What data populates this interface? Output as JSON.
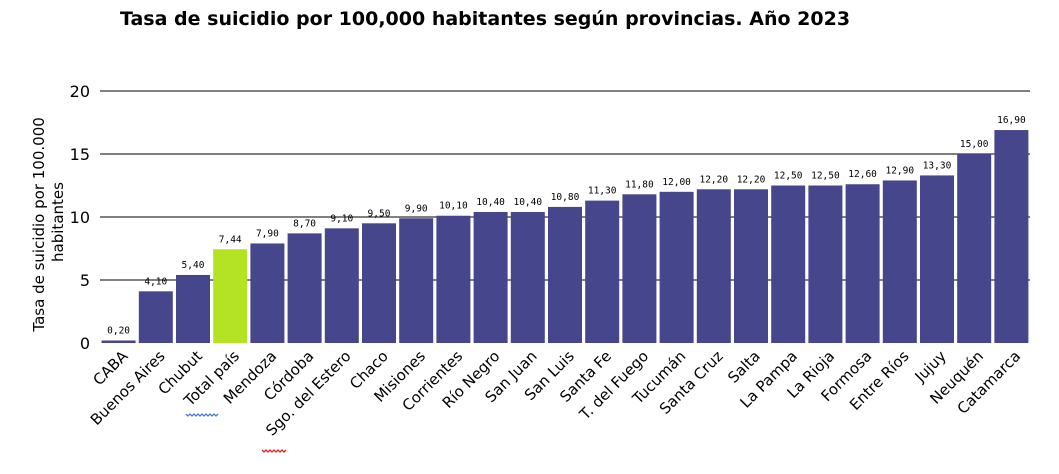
{
  "chart_data": {
    "type": "bar",
    "title": "Tasa de suicidio por 100,000 habitantes según provincias. Año 2023",
    "ylabel_lines": [
      "Tasa de suicidio por 100.000",
      "habitantes"
    ],
    "xlabel": "",
    "ylim": [
      0,
      20
    ],
    "yticks": [
      0,
      5,
      10,
      15,
      20
    ],
    "grid": true,
    "categories": [
      "CABA",
      "Buenos Aires",
      "Chubut",
      "Total país",
      "Mendoza",
      "Córdoba",
      "Sgo. del Estero",
      "Chaco",
      "Misiones",
      "Corrientes",
      "Río Negro",
      "San Juan",
      "San Luis",
      "Santa Fe",
      "T. del Fuego",
      "Tucumán",
      "Santa Cruz",
      "Salta",
      "La Pampa",
      "La Rioja",
      "Formosa",
      "Entre Ríos",
      "Jujuy",
      "Neuquén",
      "Catamarca"
    ],
    "values": [
      0.2,
      4.1,
      5.4,
      7.44,
      7.9,
      8.7,
      9.1,
      9.5,
      9.9,
      10.1,
      10.4,
      10.4,
      10.8,
      11.3,
      11.8,
      12.0,
      12.2,
      12.2,
      12.5,
      12.5,
      12.6,
      12.9,
      13.3,
      15.0,
      16.9
    ],
    "data_labels": [
      "0,20",
      "4,10",
      "5,40",
      "7,44",
      "7,90",
      "8,70",
      "9,10",
      "9,50",
      "9,90",
      "10,10",
      "10,40",
      "10,40",
      "10,80",
      "11,30",
      "11,80",
      "12,00",
      "12,20",
      "12,20",
      "12,50",
      "12,50",
      "12,60",
      "12,90",
      "13,30",
      "15,00",
      "16,90"
    ],
    "colors": {
      "bar": "#46468c",
      "highlight": "#b3e322",
      "highlight_category": "Total país",
      "grid": "#000000",
      "spell_underline_red": "#e02020",
      "spell_underline_blue": "#4a7bd0"
    }
  }
}
